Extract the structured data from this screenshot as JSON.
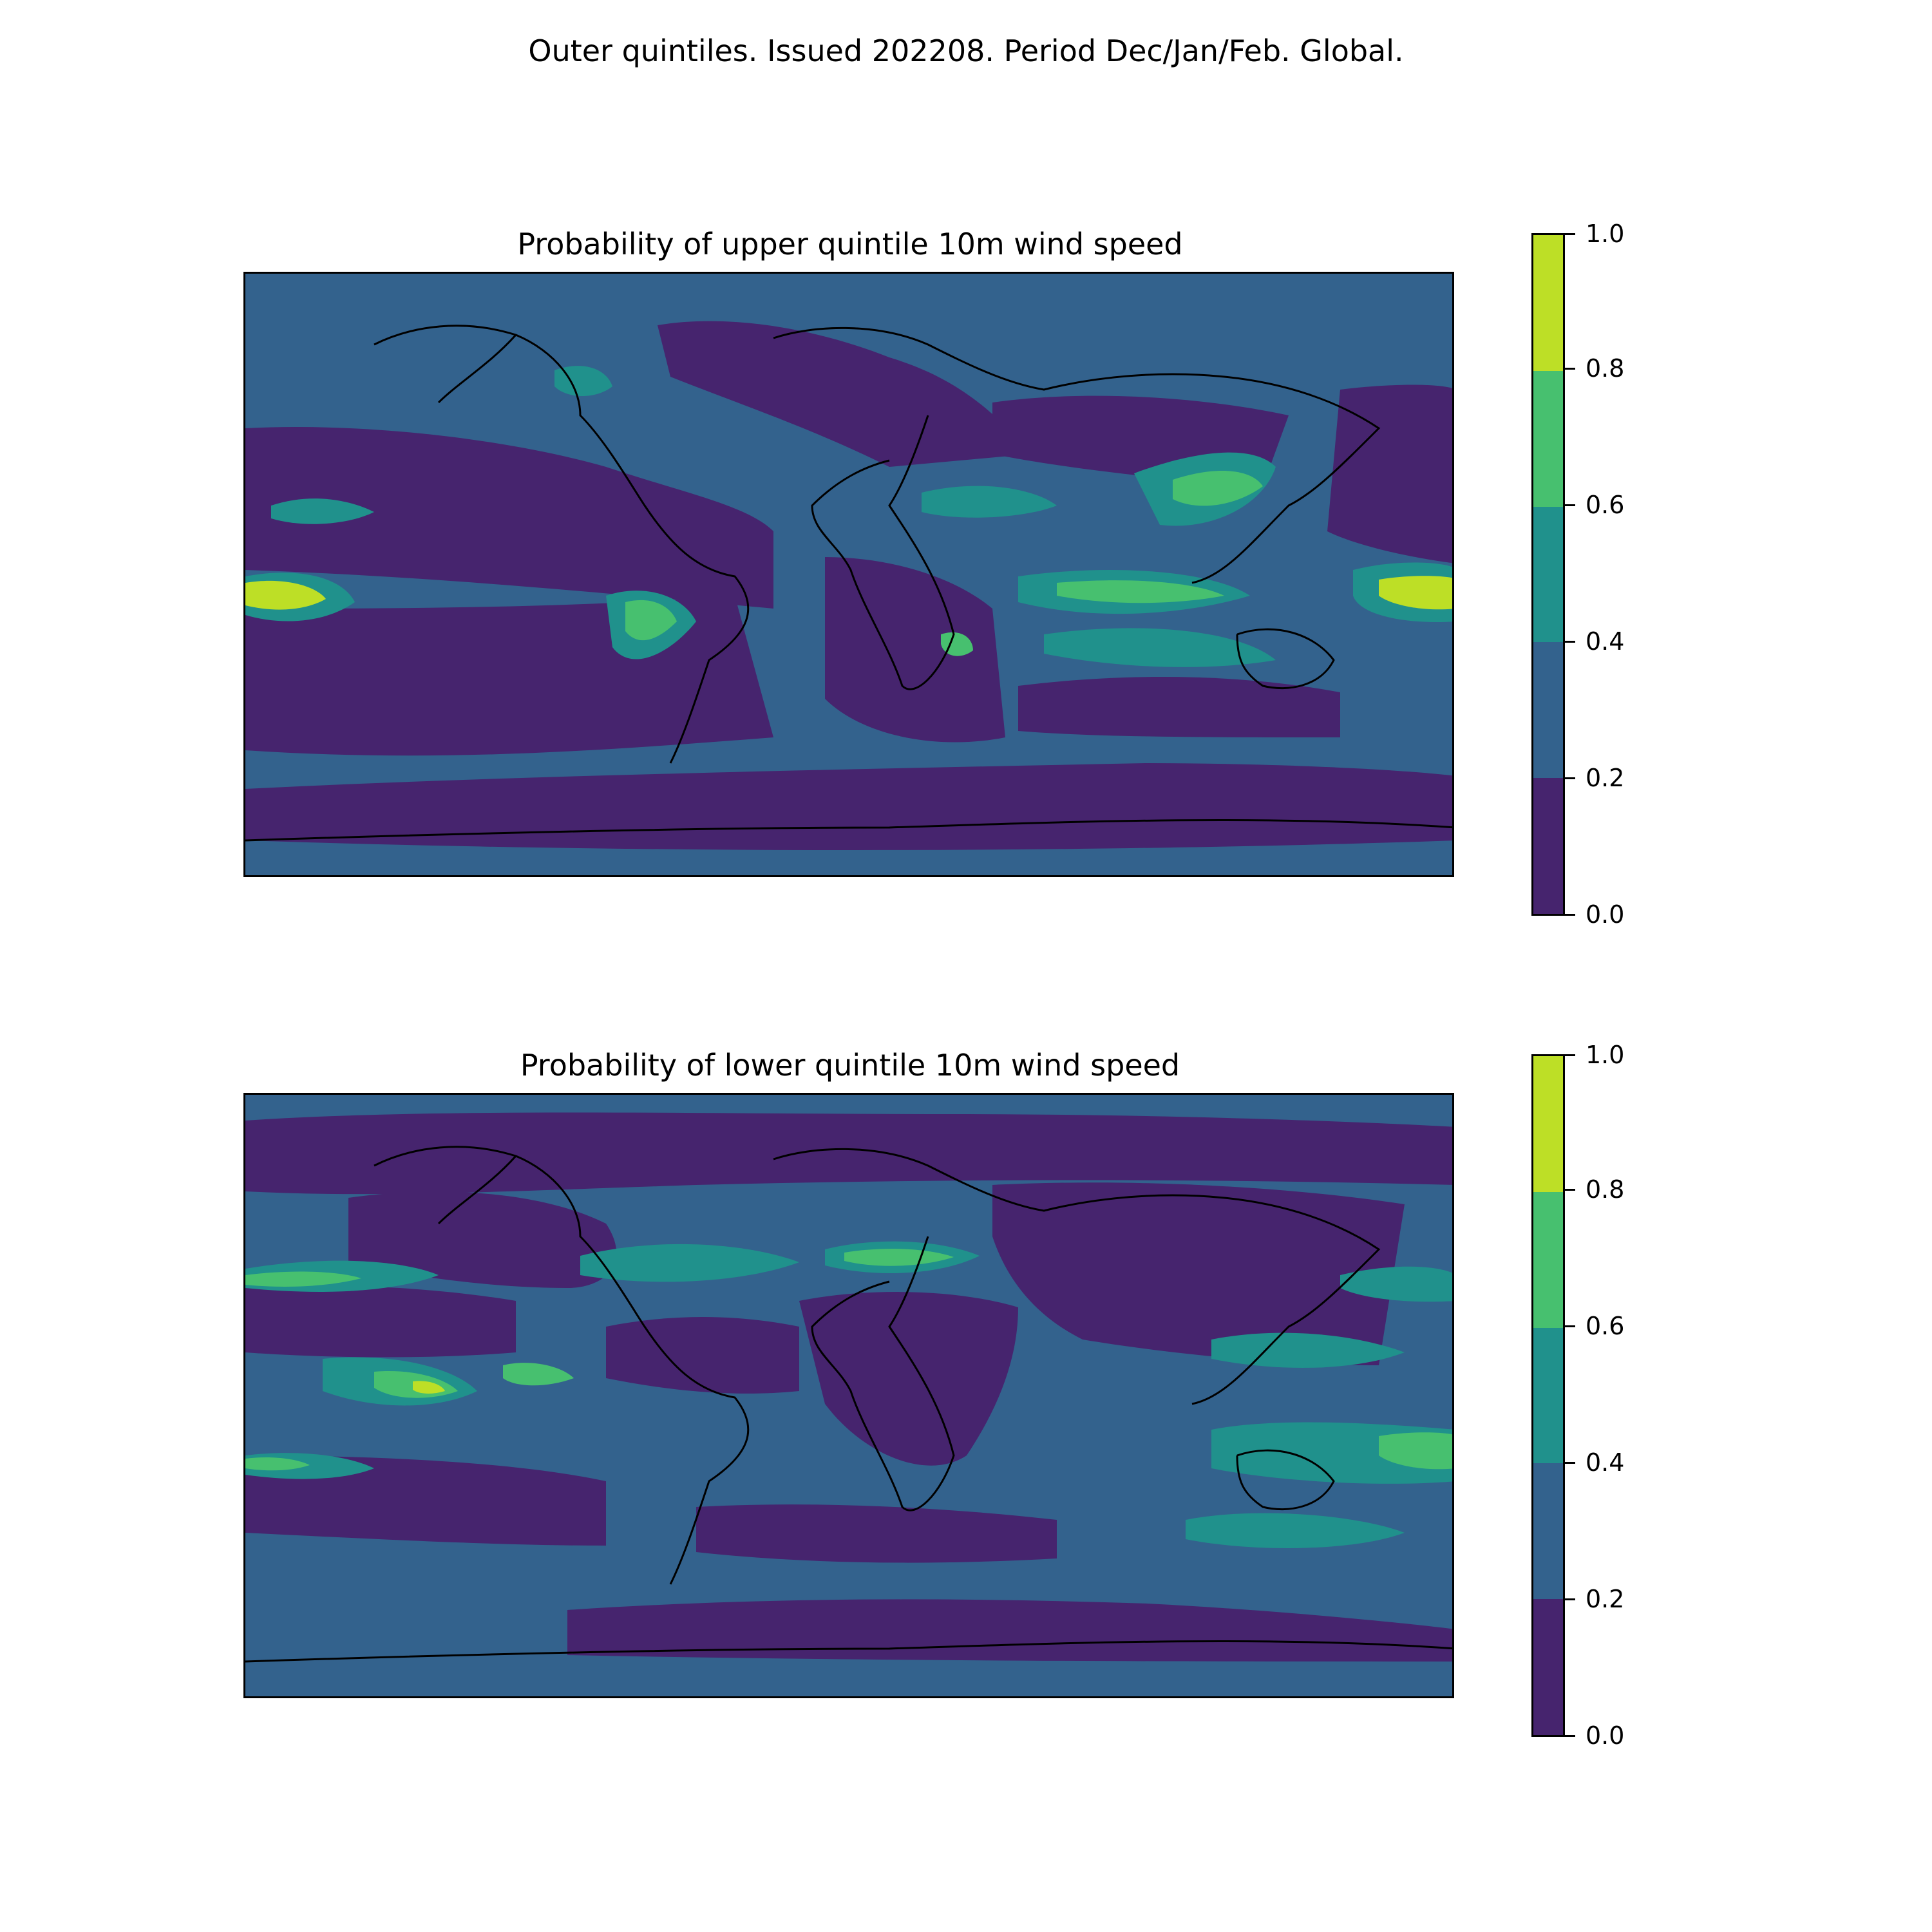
{
  "suptitle": "Outer quintiles. Issued 202208. Period Dec/Jan/Feb. Global.",
  "colorbar": {
    "ticks": [
      "0.0",
      "0.2",
      "0.4",
      "0.6",
      "0.8",
      "1.0"
    ],
    "levels": [
      {
        "range": [
          0.0,
          0.2
        ],
        "color": "#46246e"
      },
      {
        "range": [
          0.2,
          0.4
        ],
        "color": "#33628d"
      },
      {
        "range": [
          0.4,
          0.6
        ],
        "color": "#20918c"
      },
      {
        "range": [
          0.6,
          0.8
        ],
        "color": "#47c06f"
      },
      {
        "range": [
          0.8,
          1.0
        ],
        "color": "#bddf26"
      }
    ]
  },
  "panels": [
    {
      "title": "Probability of upper quintile 10m wind speed",
      "background_level": 1,
      "regions": [
        {
          "name": "north-pacific-low",
          "level": 0
        },
        {
          "name": "tropical-pacific-low",
          "level": 0
        },
        {
          "name": "south-atlantic-low",
          "level": 0
        },
        {
          "name": "southern-ocean-low",
          "level": 0
        },
        {
          "name": "central-pacific-max",
          "level": 4
        },
        {
          "name": "west-pacific-max",
          "level": 4
        },
        {
          "name": "indian-ocean-band",
          "level": 3
        },
        {
          "name": "east-asia-high",
          "level": 3
        },
        {
          "name": "south-america-high",
          "level": 3
        },
        {
          "name": "southeast-africa-high",
          "level": 3
        }
      ]
    },
    {
      "title": "Probability of lower quintile 10m wind speed",
      "background_level": 1,
      "regions": [
        {
          "name": "northern-high-latitude-low",
          "level": 0
        },
        {
          "name": "eurasia-low",
          "level": 0
        },
        {
          "name": "africa-low",
          "level": 0
        },
        {
          "name": "north-atlantic-band",
          "level": 3
        },
        {
          "name": "mediterranean-high",
          "level": 3
        },
        {
          "name": "east-pacific-tropical-high",
          "level": 4
        },
        {
          "name": "west-pacific-band",
          "level": 3
        },
        {
          "name": "australia-high",
          "level": 2
        },
        {
          "name": "southern-indian-ocean-high",
          "level": 2
        },
        {
          "name": "antarctic-coast-low",
          "level": 0
        }
      ]
    }
  ]
}
